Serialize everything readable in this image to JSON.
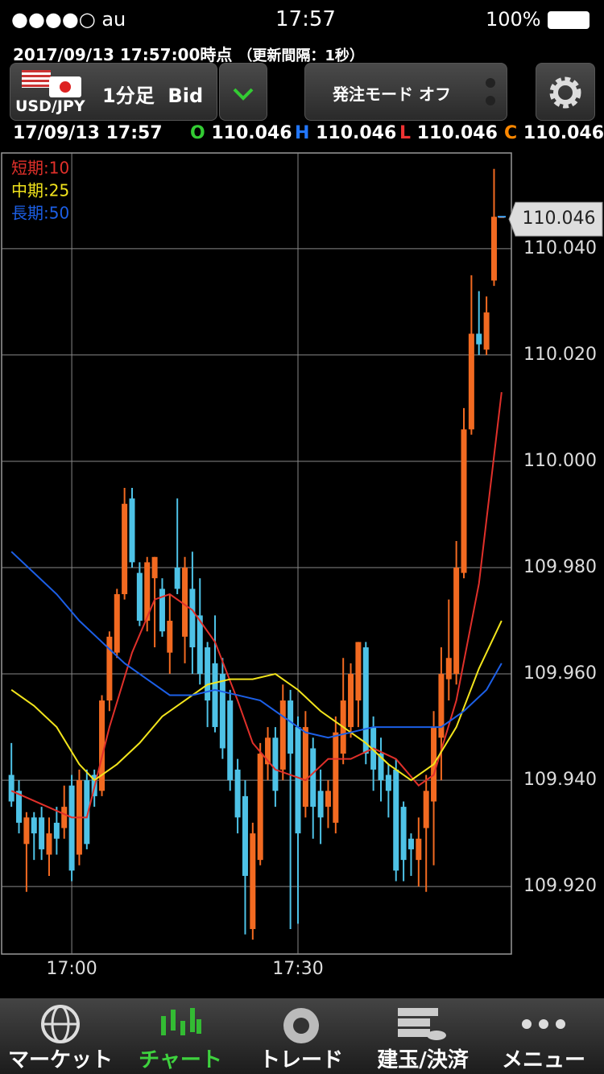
{
  "status_bar": {
    "carrier": "●●●●○ au",
    "time": "17:57",
    "battery": "100%"
  },
  "header": {
    "timestamp": "2017/09/13  17:57:00時点",
    "interval": "（更新間隔：1秒）"
  },
  "toolbar": {
    "pair": "USD/JPY",
    "timeframe": "1分足",
    "price_type": "Bid",
    "order_mode": "発注モード オフ"
  },
  "quote": {
    "time": "17/09/13 17:57",
    "open_label": "O",
    "open": 110.046,
    "high_label": "H",
    "high": 110.046,
    "low_label": "L",
    "low": 110.046,
    "close_label": "C",
    "close": 110.046
  },
  "chart_data": {
    "type": "candlestick",
    "x": [
      -8,
      -7,
      -6,
      -5,
      -4,
      -3,
      -2,
      -1,
      0,
      1,
      2,
      3,
      4,
      5,
      6,
      7,
      8,
      9,
      10,
      11,
      12,
      13,
      14,
      15,
      16,
      17,
      18,
      19,
      20,
      21,
      22,
      23,
      24,
      25,
      26,
      27,
      28,
      29,
      30,
      31,
      32,
      33,
      34,
      35,
      36,
      37,
      38,
      39,
      40,
      41,
      42,
      43,
      44,
      45,
      46,
      47,
      48,
      49,
      50,
      51,
      52,
      53,
      54,
      55,
      56,
      57
    ],
    "open": [
      109.941,
      109.938,
      109.928,
      109.933,
      109.933,
      109.926,
      109.932,
      109.931,
      109.939,
      109.926,
      109.94,
      109.941,
      109.938,
      109.955,
      109.964,
      109.975,
      109.993,
      109.979,
      109.97,
      109.978,
      109.976,
      109.964,
      109.98,
      109.967,
      109.976,
      109.971,
      109.965,
      109.962,
      109.96,
      109.955,
      109.942,
      109.937,
      109.912,
      109.925,
      109.943,
      109.948,
      109.942,
      109.955,
      109.95,
      109.935,
      109.946,
      109.938,
      109.935,
      109.932,
      109.945,
      109.95,
      109.955,
      109.965,
      109.95,
      109.945,
      109.941,
      109.942,
      109.935,
      109.929,
      109.925,
      109.931,
      109.936,
      109.948,
      109.959,
      109.96,
      109.979,
      110.006,
      110.024,
      110.021,
      110.034,
      110.046
    ],
    "high": [
      109.947,
      109.94,
      109.934,
      109.934,
      109.935,
      109.933,
      109.935,
      109.939,
      109.941,
      109.942,
      109.942,
      109.942,
      109.956,
      109.968,
      109.976,
      109.995,
      109.995,
      109.981,
      109.982,
      109.982,
      109.978,
      109.975,
      109.993,
      109.982,
      109.983,
      109.978,
      109.966,
      109.971,
      109.963,
      109.957,
      109.944,
      109.94,
      109.932,
      109.947,
      109.95,
      109.95,
      109.958,
      109.957,
      109.952,
      109.953,
      109.948,
      109.942,
      109.94,
      109.952,
      109.963,
      109.962,
      109.966,
      109.966,
      109.952,
      109.948,
      109.943,
      109.944,
      109.936,
      109.93,
      109.933,
      109.941,
      109.953,
      109.965,
      109.974,
      109.985,
      110.01,
      110.035,
      110.032,
      110.031,
      110.055,
      110.046
    ],
    "low": [
      109.935,
      109.93,
      109.919,
      109.925,
      109.925,
      109.922,
      109.926,
      109.929,
      109.921,
      109.924,
      109.927,
      109.935,
      109.937,
      109.953,
      109.963,
      109.974,
      109.98,
      109.969,
      109.968,
      109.965,
      109.967,
      109.96,
      109.975,
      109.962,
      109.96,
      109.958,
      109.95,
      109.949,
      109.944,
      109.938,
      109.93,
      109.911,
      109.91,
      109.924,
      109.94,
      109.935,
      109.94,
      109.912,
      109.913,
      109.933,
      109.929,
      109.928,
      109.931,
      109.93,
      109.943,
      109.948,
      109.95,
      109.943,
      109.938,
      109.936,
      109.933,
      109.921,
      109.921,
      109.922,
      109.92,
      109.919,
      109.924,
      109.94,
      109.955,
      109.958,
      109.978,
      110.005,
      110.02,
      110.02,
      110.033,
      110.046
    ],
    "close": [
      109.936,
      109.932,
      109.933,
      109.93,
      109.927,
      109.93,
      109.929,
      109.935,
      109.923,
      109.94,
      109.928,
      109.937,
      109.955,
      109.967,
      109.975,
      109.992,
      109.981,
      109.97,
      109.981,
      109.982,
      109.968,
      109.97,
      109.976,
      109.98,
      109.965,
      109.96,
      109.955,
      109.95,
      109.946,
      109.94,
      109.933,
      109.922,
      109.93,
      109.945,
      109.948,
      109.938,
      109.955,
      109.945,
      109.93,
      109.95,
      109.935,
      109.933,
      109.938,
      109.949,
      109.955,
      109.96,
      109.966,
      109.945,
      109.942,
      109.94,
      109.938,
      109.923,
      109.925,
      109.927,
      109.929,
      109.938,
      109.95,
      109.96,
      109.963,
      109.98,
      110.006,
      110.024,
      110.022,
      110.028,
      110.046,
      110.046
    ],
    "up_color": "#f26a21",
    "down_color": "#4ec2e6",
    "series": [
      {
        "name": "短期:10",
        "color": "#e0302a",
        "x": [
          -8,
          0,
          2,
          5,
          8,
          11,
          13,
          16,
          19,
          22,
          24,
          27,
          31,
          34,
          37,
          40,
          43,
          46,
          48,
          51,
          54,
          57
        ],
        "values": [
          109.938,
          109.933,
          109.933,
          109.95,
          109.964,
          109.974,
          109.975,
          109.972,
          109.966,
          109.955,
          109.947,
          109.942,
          109.94,
          109.944,
          109.944,
          109.946,
          109.944,
          109.939,
          109.941,
          109.955,
          109.977,
          110.013
        ]
      },
      {
        "name": "中期:25",
        "color": "#f2e41c",
        "x": [
          -8,
          -5,
          -2,
          1,
          3,
          6,
          9,
          12,
          15,
          18,
          21,
          24,
          27,
          30,
          33,
          36,
          39,
          42,
          45,
          48,
          51,
          54,
          57
        ],
        "values": [
          109.957,
          109.954,
          109.95,
          109.943,
          109.94,
          109.943,
          109.947,
          109.952,
          109.955,
          109.958,
          109.959,
          109.959,
          109.96,
          109.957,
          109.953,
          109.95,
          109.947,
          109.943,
          109.94,
          109.943,
          109.95,
          109.961,
          109.97
        ]
      },
      {
        "name": "長期:50",
        "color": "#1c5fe6",
        "x": [
          -8,
          -5,
          -2,
          1,
          4,
          7,
          10,
          13,
          16,
          19,
          22,
          25,
          28,
          31,
          34,
          37,
          40,
          43,
          46,
          49,
          52,
          55,
          57
        ],
        "values": [
          109.983,
          109.979,
          109.975,
          109.97,
          109.966,
          109.962,
          109.959,
          109.956,
          109.956,
          109.957,
          109.956,
          109.955,
          109.952,
          109.949,
          109.948,
          109.949,
          109.95,
          109.95,
          109.95,
          109.95,
          109.953,
          109.957,
          109.962
        ]
      }
    ],
    "xlim": [
      -9.3,
      58.3
    ],
    "xticks": [
      {
        "value": 0,
        "label": "17:00"
      },
      {
        "value": 30,
        "label": "17:30"
      }
    ],
    "ylim": [
      109.9073,
      110.058
    ],
    "yticks": [
      {
        "value": 110.04,
        "label": "110.040"
      },
      {
        "value": 110.02,
        "label": "110.020"
      },
      {
        "value": 110,
        "label": "110.000"
      },
      {
        "value": 109.98,
        "label": "109.980"
      },
      {
        "value": 109.96,
        "label": "109.960"
      },
      {
        "value": 109.94,
        "label": "109.940"
      },
      {
        "value": 109.92,
        "label": "109.920"
      }
    ],
    "grid": true,
    "last_price": 110.046
  },
  "tabs": [
    "マーケット",
    "チャート",
    "トレード",
    "建玉/決済",
    "メニュー"
  ]
}
